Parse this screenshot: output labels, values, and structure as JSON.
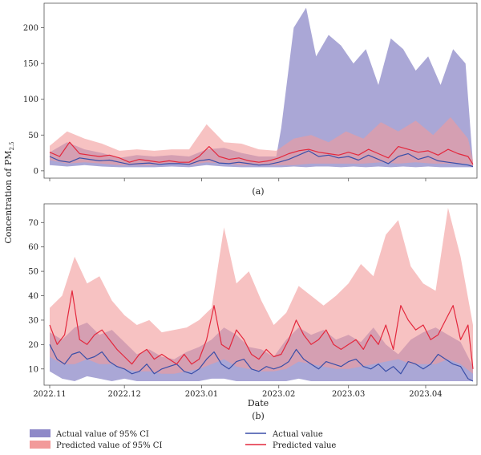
{
  "figure": {
    "ylabel": "Concentration of PM",
    "ylabel_sub": "2.5",
    "xlabel": "Date"
  },
  "legend": {
    "actual_ci": "Actual value of 95% CI",
    "pred_ci": "Predicted value of 95% CI",
    "actual": "Actual value",
    "pred": "Predicted value"
  },
  "colors": {
    "actual_line": "#3a4fa8",
    "pred_line": "#e3283d",
    "actual_band": "#8e89c8",
    "pred_band": "#f29a9a"
  },
  "chart_data": [
    {
      "id": "a",
      "type": "line",
      "panel_label": "(a)",
      "x_start": "2022-11-01",
      "x_end": "2023-04-20",
      "ylim": [
        -8,
        232
      ],
      "yticks": [
        0,
        50,
        100,
        150,
        200
      ],
      "xticks": [
        "2022-11-01",
        "2022-12-01",
        "2023-01-01",
        "2023-02-01",
        "2023-03-01",
        "2023-04-01"
      ],
      "series": [
        {
          "name": "Actual value of 95% CI",
          "kind": "band",
          "x": [
            "2022-11-01",
            "2022-11-08",
            "2022-11-15",
            "2022-11-22",
            "2022-11-29",
            "2022-12-06",
            "2022-12-13",
            "2022-12-20",
            "2022-12-27",
            "2023-01-03",
            "2023-01-10",
            "2023-01-17",
            "2023-01-24",
            "2023-01-31",
            "2023-02-02",
            "2023-02-07",
            "2023-02-12",
            "2023-02-16",
            "2023-02-21",
            "2023-02-26",
            "2023-03-03",
            "2023-03-08",
            "2023-03-13",
            "2023-03-18",
            "2023-03-23",
            "2023-03-28",
            "2023-04-02",
            "2023-04-07",
            "2023-04-12",
            "2023-04-17",
            "2023-04-20"
          ],
          "upper": [
            26,
            40,
            30,
            25,
            18,
            22,
            20,
            22,
            20,
            30,
            32,
            25,
            20,
            20,
            60,
            200,
            228,
            160,
            190,
            175,
            150,
            170,
            120,
            185,
            170,
            140,
            160,
            120,
            170,
            150,
            10
          ],
          "lower": [
            8,
            6,
            8,
            6,
            5,
            5,
            5,
            6,
            5,
            8,
            6,
            5,
            5,
            5,
            5,
            6,
            5,
            6,
            6,
            5,
            6,
            5,
            6,
            5,
            6,
            5,
            6,
            5,
            5,
            5,
            5
          ]
        },
        {
          "name": "Predicted value of 95% CI",
          "kind": "band",
          "x": [
            "2022-11-01",
            "2022-11-08",
            "2022-11-15",
            "2022-11-22",
            "2022-11-29",
            "2022-12-06",
            "2022-12-13",
            "2022-12-20",
            "2022-12-27",
            "2023-01-03",
            "2023-01-10",
            "2023-01-17",
            "2023-01-24",
            "2023-01-31",
            "2023-02-07",
            "2023-02-14",
            "2023-02-21",
            "2023-02-28",
            "2023-03-07",
            "2023-03-14",
            "2023-03-21",
            "2023-03-28",
            "2023-04-04",
            "2023-04-11",
            "2023-04-18",
            "2023-04-20"
          ],
          "upper": [
            35,
            55,
            45,
            38,
            28,
            30,
            28,
            30,
            30,
            65,
            40,
            38,
            30,
            28,
            45,
            50,
            40,
            55,
            45,
            68,
            55,
            70,
            50,
            75,
            45,
            15
          ],
          "lower": [
            15,
            10,
            12,
            10,
            8,
            8,
            8,
            10,
            8,
            12,
            10,
            8,
            8,
            8,
            8,
            10,
            10,
            10,
            10,
            12,
            10,
            12,
            10,
            10,
            10,
            6
          ]
        },
        {
          "name": "Actual value",
          "kind": "line",
          "x": [
            "2022-11-01",
            "2022-11-05",
            "2022-11-09",
            "2022-11-13",
            "2022-11-17",
            "2022-11-21",
            "2022-11-25",
            "2022-11-29",
            "2022-12-03",
            "2022-12-07",
            "2022-12-11",
            "2022-12-15",
            "2022-12-19",
            "2022-12-23",
            "2022-12-27",
            "2022-12-31",
            "2023-01-04",
            "2023-01-08",
            "2023-01-12",
            "2023-01-16",
            "2023-01-20",
            "2023-01-24",
            "2023-01-28",
            "2023-02-01",
            "2023-02-05",
            "2023-02-09",
            "2023-02-13",
            "2023-02-17",
            "2023-02-21",
            "2023-02-25",
            "2023-03-01",
            "2023-03-05",
            "2023-03-09",
            "2023-03-13",
            "2023-03-17",
            "2023-03-21",
            "2023-03-25",
            "2023-03-29",
            "2023-04-02",
            "2023-04-06",
            "2023-04-10",
            "2023-04-14",
            "2023-04-18",
            "2023-04-20"
          ],
          "values": [
            20,
            14,
            12,
            18,
            16,
            14,
            15,
            12,
            9,
            10,
            11,
            9,
            10,
            10,
            9,
            14,
            16,
            11,
            10,
            12,
            10,
            8,
            9,
            12,
            16,
            22,
            28,
            20,
            22,
            18,
            20,
            15,
            22,
            16,
            10,
            20,
            24,
            16,
            20,
            14,
            12,
            10,
            8,
            6
          ]
        },
        {
          "name": "Predicted value",
          "kind": "line",
          "x": [
            "2022-11-01",
            "2022-11-05",
            "2022-11-09",
            "2022-11-13",
            "2022-11-17",
            "2022-11-21",
            "2022-11-25",
            "2022-11-29",
            "2022-12-03",
            "2022-12-07",
            "2022-12-11",
            "2022-12-15",
            "2022-12-19",
            "2022-12-23",
            "2022-12-27",
            "2022-12-31",
            "2023-01-04",
            "2023-01-08",
            "2023-01-12",
            "2023-01-16",
            "2023-01-20",
            "2023-01-24",
            "2023-01-28",
            "2023-02-01",
            "2023-02-05",
            "2023-02-09",
            "2023-02-13",
            "2023-02-17",
            "2023-02-21",
            "2023-02-25",
            "2023-03-01",
            "2023-03-05",
            "2023-03-09",
            "2023-03-13",
            "2023-03-17",
            "2023-03-21",
            "2023-03-25",
            "2023-03-29",
            "2023-04-02",
            "2023-04-06",
            "2023-04-10",
            "2023-04-14",
            "2023-04-18",
            "2023-04-20"
          ],
          "values": [
            26,
            20,
            40,
            24,
            22,
            20,
            22,
            18,
            12,
            16,
            14,
            12,
            14,
            12,
            12,
            20,
            34,
            20,
            16,
            18,
            14,
            12,
            14,
            18,
            24,
            28,
            30,
            26,
            24,
            22,
            26,
            22,
            30,
            24,
            18,
            34,
            30,
            26,
            28,
            22,
            30,
            24,
            20,
            9
          ]
        }
      ]
    },
    {
      "id": "b",
      "type": "line",
      "panel_label": "(b)",
      "xlabel": "Date",
      "x_start": "2022-11-01",
      "x_end": "2023-04-20",
      "ylim": [
        4,
        77
      ],
      "yticks": [
        10,
        20,
        30,
        40,
        50,
        60,
        70
      ],
      "xticks": [
        "2022-11-01",
        "2022-12-01",
        "2023-01-01",
        "2023-02-01",
        "2023-03-01",
        "2023-04-01"
      ],
      "xtick_labels": [
        "2022.11",
        "2022.12",
        "2023.01",
        "2023.02",
        "2023.03",
        "2023.04"
      ],
      "series": [
        {
          "name": "Actual value of 95% CI",
          "kind": "band",
          "x": [
            "2022-11-01",
            "2022-11-06",
            "2022-11-11",
            "2022-11-16",
            "2022-11-21",
            "2022-11-26",
            "2022-12-01",
            "2022-12-06",
            "2022-12-11",
            "2022-12-16",
            "2022-12-21",
            "2022-12-26",
            "2022-12-31",
            "2023-01-05",
            "2023-01-10",
            "2023-01-15",
            "2023-01-20",
            "2023-01-25",
            "2023-01-30",
            "2023-02-04",
            "2023-02-09",
            "2023-02-14",
            "2023-02-19",
            "2023-02-24",
            "2023-03-01",
            "2023-03-06",
            "2023-03-11",
            "2023-03-16",
            "2023-03-21",
            "2023-03-26",
            "2023-03-31",
            "2023-04-05",
            "2023-04-10",
            "2023-04-15",
            "2023-04-20"
          ],
          "upper": [
            25,
            22,
            27,
            29,
            24,
            26,
            21,
            16,
            18,
            15,
            14,
            17,
            19,
            22,
            27,
            24,
            19,
            18,
            15,
            22,
            27,
            24,
            26,
            22,
            24,
            21,
            27,
            20,
            16,
            22,
            25,
            27,
            24,
            21,
            11
          ],
          "lower": [
            9,
            6,
            5,
            7,
            6,
            5,
            6,
            5,
            5,
            5,
            5,
            5,
            5,
            6,
            6,
            5,
            5,
            5,
            5,
            5,
            6,
            5,
            5,
            5,
            5,
            5,
            5,
            5,
            5,
            5,
            5,
            5,
            5,
            5,
            5
          ]
        },
        {
          "name": "Predicted value of 95% CI",
          "kind": "band",
          "x": [
            "2022-11-01",
            "2022-11-06",
            "2022-11-11",
            "2022-11-16",
            "2022-11-21",
            "2022-11-26",
            "2022-12-01",
            "2022-12-06",
            "2022-12-11",
            "2022-12-16",
            "2022-12-21",
            "2022-12-26",
            "2022-12-31",
            "2023-01-05",
            "2023-01-10",
            "2023-01-15",
            "2023-01-20",
            "2023-01-25",
            "2023-01-30",
            "2023-02-04",
            "2023-02-09",
            "2023-02-14",
            "2023-02-19",
            "2023-02-24",
            "2023-03-01",
            "2023-03-06",
            "2023-03-11",
            "2023-03-16",
            "2023-03-21",
            "2023-03-26",
            "2023-03-31",
            "2023-04-05",
            "2023-04-10",
            "2023-04-15",
            "2023-04-20"
          ],
          "upper": [
            35,
            40,
            56,
            45,
            48,
            38,
            32,
            28,
            30,
            25,
            26,
            27,
            30,
            35,
            68,
            45,
            50,
            38,
            28,
            33,
            44,
            40,
            36,
            40,
            45,
            53,
            48,
            65,
            71,
            52,
            45,
            42,
            76,
            56,
            28
          ],
          "lower": [
            15,
            12,
            12,
            14,
            12,
            12,
            10,
            9,
            9,
            8,
            8,
            9,
            10,
            12,
            14,
            11,
            10,
            9,
            9,
            10,
            13,
            12,
            11,
            10,
            10,
            11,
            12,
            13,
            14,
            12,
            12,
            12,
            14,
            12,
            8
          ]
        },
        {
          "name": "Actual value",
          "kind": "line",
          "x": [
            "2022-11-01",
            "2022-11-04",
            "2022-11-07",
            "2022-11-10",
            "2022-11-13",
            "2022-11-16",
            "2022-11-19",
            "2022-11-22",
            "2022-11-25",
            "2022-11-28",
            "2022-12-01",
            "2022-12-04",
            "2022-12-07",
            "2022-12-10",
            "2022-12-13",
            "2022-12-16",
            "2022-12-19",
            "2022-12-22",
            "2022-12-25",
            "2022-12-28",
            "2022-12-31",
            "2023-01-03",
            "2023-01-06",
            "2023-01-09",
            "2023-01-12",
            "2023-01-15",
            "2023-01-18",
            "2023-01-21",
            "2023-01-24",
            "2023-01-27",
            "2023-01-30",
            "2023-02-02",
            "2023-02-05",
            "2023-02-08",
            "2023-02-11",
            "2023-02-14",
            "2023-02-17",
            "2023-02-20",
            "2023-02-23",
            "2023-02-26",
            "2023-03-01",
            "2023-03-04",
            "2023-03-07",
            "2023-03-10",
            "2023-03-13",
            "2023-03-16",
            "2023-03-19",
            "2023-03-22",
            "2023-03-25",
            "2023-03-28",
            "2023-03-31",
            "2023-04-03",
            "2023-04-06",
            "2023-04-09",
            "2023-04-12",
            "2023-04-15",
            "2023-04-18",
            "2023-04-20"
          ],
          "values": [
            20,
            14,
            12,
            16,
            17,
            14,
            15,
            17,
            13,
            11,
            10,
            8,
            9,
            12,
            8,
            10,
            11,
            12,
            9,
            8,
            10,
            14,
            17,
            12,
            10,
            13,
            14,
            10,
            9,
            11,
            10,
            11,
            13,
            18,
            14,
            12,
            10,
            13,
            12,
            11,
            13,
            14,
            11,
            10,
            12,
            9,
            11,
            8,
            13,
            12,
            10,
            12,
            16,
            14,
            12,
            11,
            6,
            5
          ],
          "note": ""
        },
        {
          "name": "Predicted value",
          "kind": "line",
          "x": [
            "2022-11-01",
            "2022-11-04",
            "2022-11-07",
            "2022-11-10",
            "2022-11-13",
            "2022-11-16",
            "2022-11-19",
            "2022-11-22",
            "2022-11-25",
            "2022-11-28",
            "2022-12-01",
            "2022-12-04",
            "2022-12-07",
            "2022-12-10",
            "2022-12-13",
            "2022-12-16",
            "2022-12-19",
            "2022-12-22",
            "2022-12-25",
            "2022-12-28",
            "2022-12-31",
            "2023-01-03",
            "2023-01-06",
            "2023-01-09",
            "2023-01-12",
            "2023-01-15",
            "2023-01-18",
            "2023-01-21",
            "2023-01-24",
            "2023-01-27",
            "2023-01-30",
            "2023-02-02",
            "2023-02-05",
            "2023-02-08",
            "2023-02-11",
            "2023-02-14",
            "2023-02-17",
            "2023-02-20",
            "2023-02-23",
            "2023-02-26",
            "2023-03-01",
            "2023-03-04",
            "2023-03-07",
            "2023-03-10",
            "2023-03-13",
            "2023-03-16",
            "2023-03-19",
            "2023-03-22",
            "2023-03-25",
            "2023-03-28",
            "2023-03-31",
            "2023-04-03",
            "2023-04-06",
            "2023-04-09",
            "2023-04-12",
            "2023-04-15",
            "2023-04-18",
            "2023-04-20"
          ],
          "values": [
            28,
            20,
            24,
            42,
            22,
            20,
            24,
            26,
            22,
            18,
            15,
            12,
            16,
            18,
            14,
            16,
            14,
            12,
            16,
            12,
            14,
            22,
            36,
            20,
            18,
            26,
            22,
            16,
            14,
            18,
            15,
            16,
            22,
            30,
            24,
            20,
            22,
            26,
            20,
            18,
            20,
            22,
            18,
            24,
            20,
            28,
            18,
            36,
            30,
            26,
            28,
            22,
            24,
            30,
            36,
            22,
            28,
            10
          ]
        }
      ]
    }
  ]
}
